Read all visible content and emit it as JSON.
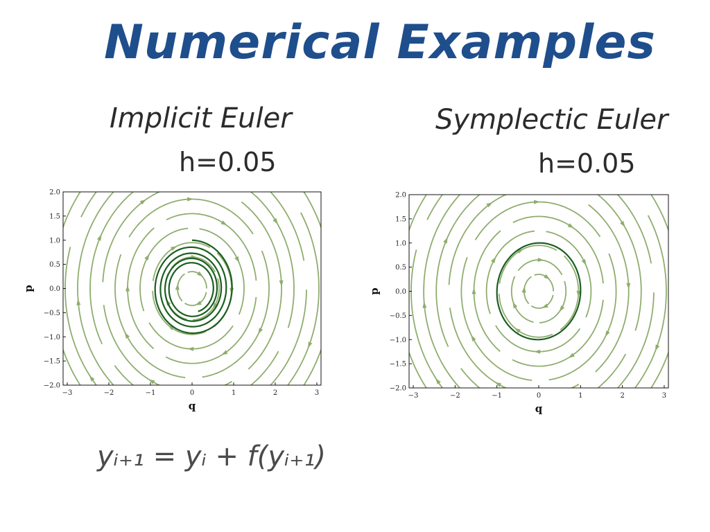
{
  "page": {
    "title": "Numerical Examples",
    "formula": "y_{i+1} = y_i + f(y_{i+1})",
    "formula_display": "yᵢ₊₁ = yᵢ + f(yᵢ₊₁)"
  },
  "colors": {
    "title": "#1f4e8c",
    "streamline": "#8fad6e",
    "trajectory": "#1b5e20",
    "handwriting": "#2b2b2b"
  },
  "chart_data": [
    {
      "type": "streamplot",
      "label": "Implicit Euler",
      "step_label": "h=0.05",
      "xlabel": "q",
      "ylabel": "p",
      "xlim": [
        -3.1,
        3.1
      ],
      "ylim": [
        -2.0,
        2.0
      ],
      "xticks": [
        -3,
        -2,
        -1,
        0,
        1,
        2,
        3
      ],
      "yticks": [
        -2.0,
        -1.5,
        -1.0,
        -0.5,
        0.0,
        0.5,
        1.0,
        1.5,
        2.0
      ],
      "xtick_labels": [
        "−3",
        "−2",
        "−1",
        "0",
        "1",
        "2",
        "3"
      ],
      "ytick_labels": [
        "−2.0",
        "−1.5",
        "−1.0",
        "−0.5",
        "0.0",
        "0.5",
        "1.0",
        "1.5",
        "2.0"
      ],
      "grid": false,
      "streamline_radii": [
        0.35,
        0.65,
        0.95,
        1.25,
        1.55,
        1.85,
        2.15,
        2.45,
        2.75,
        3.05,
        3.35
      ],
      "trajectory": {
        "method": "implicit_euler",
        "h": 0.05,
        "start": [
          0.0,
          1.0
        ],
        "steps": 560,
        "behavior": "inward spiral"
      }
    },
    {
      "type": "streamplot",
      "label": "Symplectic Euler",
      "step_label": "h=0.05",
      "xlabel": "q",
      "ylabel": "p",
      "xlim": [
        -3.1,
        3.1
      ],
      "ylim": [
        -2.0,
        2.0
      ],
      "xticks": [
        -3,
        -2,
        -1,
        0,
        1,
        2,
        3
      ],
      "yticks": [
        -2.0,
        -1.5,
        -1.0,
        -0.5,
        0.0,
        0.5,
        1.0,
        1.5,
        2.0
      ],
      "xtick_labels": [
        "−3",
        "−2",
        "−1",
        "0",
        "1",
        "2",
        "3"
      ],
      "ytick_labels": [
        "−2.0",
        "−1.5",
        "−1.0",
        "−0.5",
        "0.0",
        "0.5",
        "1.0",
        "1.5",
        "2.0"
      ],
      "grid": false,
      "streamline_radii": [
        0.35,
        0.65,
        0.95,
        1.25,
        1.55,
        1.85,
        2.15,
        2.45,
        2.75,
        3.05,
        3.35
      ],
      "trajectory": {
        "method": "symplectic_euler",
        "h": 0.05,
        "start": [
          0.0,
          1.0
        ],
        "steps": 130,
        "behavior": "closed orbit"
      }
    }
  ]
}
